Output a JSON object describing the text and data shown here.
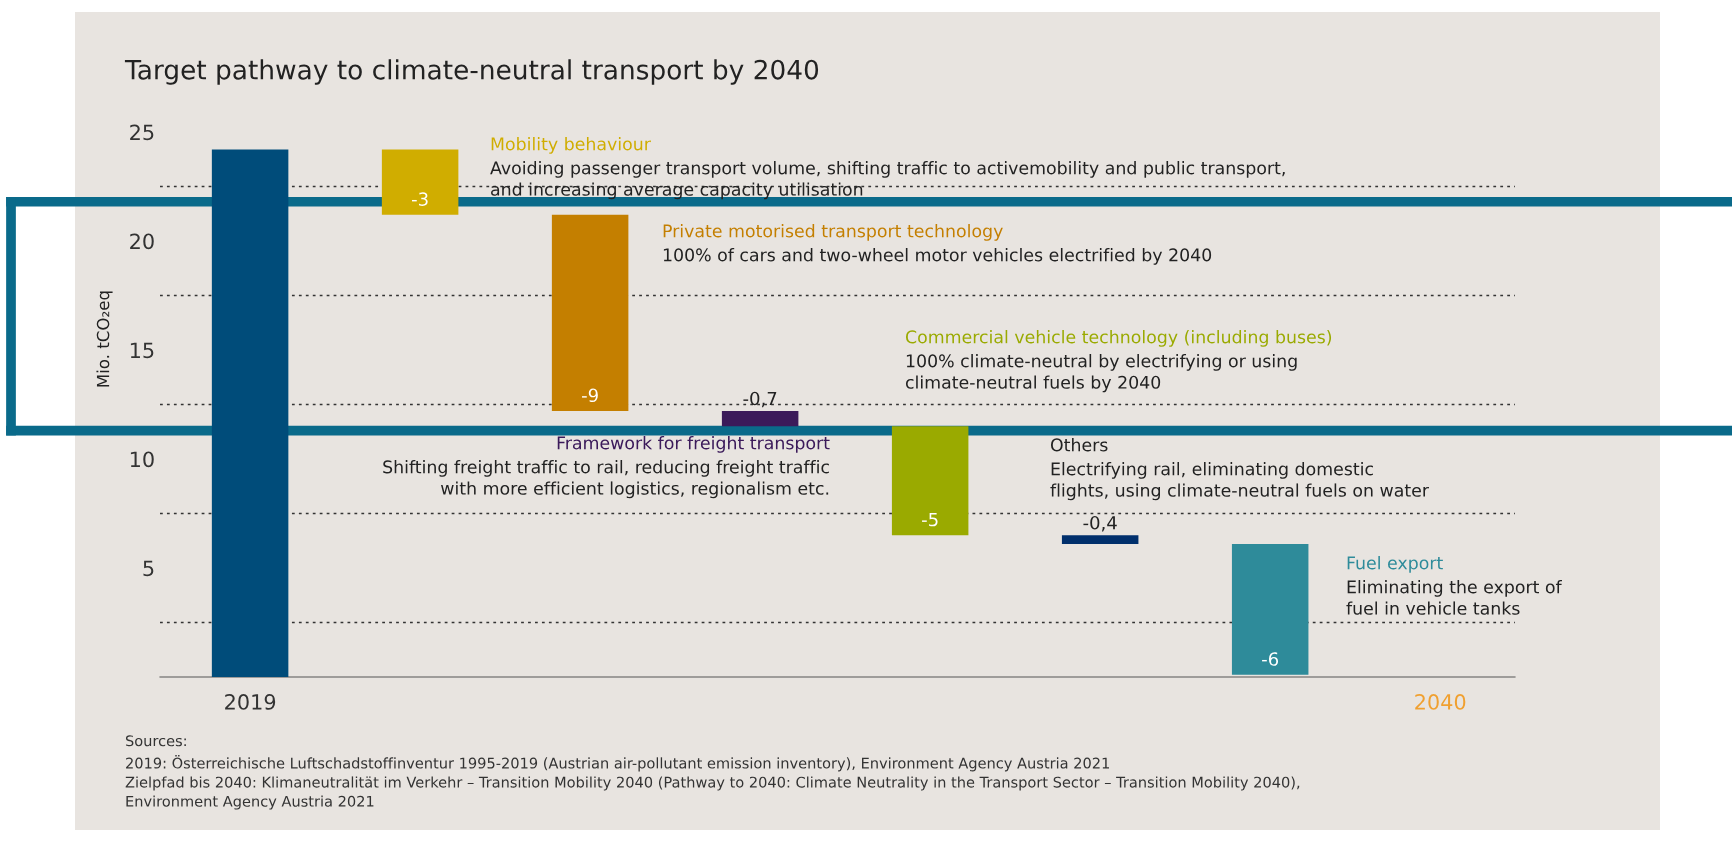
{
  "chart_data": {
    "type": "bar",
    "title": "Target pathway to climate-neutral transport by 2040",
    "ylabel": "Mio. tCO₂eq",
    "categories": [
      "2019",
      null,
      null,
      null,
      null,
      null,
      null,
      "2040"
    ],
    "values": [
      24.2,
      -3,
      -9,
      -0.7,
      -5,
      -0.4,
      -6,
      null
    ],
    "base": [
      0,
      24.2,
      21.2,
      12.2,
      11.5,
      6.5,
      6.1,
      null
    ],
    "colors": [
      "#004c7a",
      "#d0ad00",
      "#c47f00",
      "#3b1a5a",
      "#9aaa00",
      "#002f6c",
      "#2e8b9a",
      null
    ],
    "value_labels": [
      null,
      "-3",
      "-9",
      "-0,7",
      "-5",
      "-0,4",
      "-6",
      null
    ],
    "ylim": [
      0,
      25
    ],
    "yticks": [
      5,
      10,
      15,
      20,
      25
    ],
    "ref_lines": [
      {
        "axis": "y",
        "value": 2.5,
        "line_style": "dotted",
        "color": "#333333"
      },
      {
        "axis": "y",
        "value": 7.5,
        "line_style": "dotted",
        "color": "#333333"
      },
      {
        "axis": "y",
        "value": 12.5,
        "line_style": "dotted",
        "color": "#333333"
      },
      {
        "axis": "y",
        "value": 17.5,
        "line_style": "dotted",
        "color": "#333333"
      },
      {
        "axis": "y",
        "value": 22.5,
        "line_style": "dotted",
        "color": "#333333"
      },
      {
        "axis": "y",
        "value": 21.8,
        "line_style": "solid",
        "color": "#0a6a8a"
      },
      {
        "axis": "y",
        "value": 11.3,
        "line_style": "solid",
        "color": "#0a6a8a"
      }
    ],
    "grid": false,
    "legend": false,
    "annotations": [
      "Mobility behaviour",
      "Avoiding passenger transport volume, shifting traffic to activemobility and public transport,\nand increasing average capacity utilisation",
      "Private motorised transport technology",
      "100% of cars and two-wheel motor vehicles electrified by 2040",
      "Framework for freight transport",
      "Shifting freight traffic to rail, reducing freight traffic\nwith more efficient logistics, regionalism etc.",
      "Commercial vehicle technology (including buses)",
      "100% climate-neutral by electrifying or using\nclimate-neutral fuels by 2040",
      "Others",
      "Electrifying rail, eliminating domestic\nflights, using climate-neutral fuels on water",
      "Fuel export",
      "Eliminating the export of\nfuel in vehicle tanks",
      "Sources:\n2019: Österreichische Luftschadstoffinventur 1995-2019 (Austrian air-pollutant emission inventory), Environment Agency Austria 2021\nZielpfad bis 2040: Klimaneutralität im Verkehr – Transition Mobility 2040 (Pathway to 2040: Climate Neutrality in the Transport Sector – Transition Mobility 2040),\nEnvironment Agency Austria 2021"
    ]
  }
}
